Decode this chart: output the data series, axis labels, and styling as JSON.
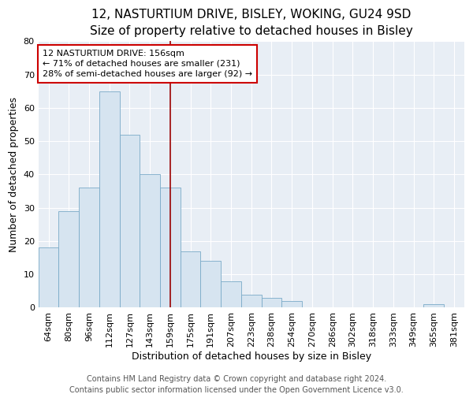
{
  "title": "12, NASTURTIUM DRIVE, BISLEY, WOKING, GU24 9SD",
  "subtitle": "Size of property relative to detached houses in Bisley",
  "xlabel": "Distribution of detached houses by size in Bisley",
  "ylabel": "Number of detached properties",
  "bar_color": "#d6e4f0",
  "bar_edge_color": "#7aaac8",
  "categories": [
    "64sqm",
    "80sqm",
    "96sqm",
    "112sqm",
    "127sqm",
    "143sqm",
    "159sqm",
    "175sqm",
    "191sqm",
    "207sqm",
    "223sqm",
    "238sqm",
    "254sqm",
    "270sqm",
    "286sqm",
    "302sqm",
    "318sqm",
    "333sqm",
    "349sqm",
    "365sqm",
    "381sqm"
  ],
  "values": [
    18,
    29,
    36,
    65,
    52,
    40,
    36,
    17,
    14,
    8,
    4,
    3,
    2,
    0,
    0,
    0,
    0,
    0,
    0,
    1,
    0
  ],
  "vline_x": 6.0,
  "vline_color": "#990000",
  "annotation_line1": "12 NASTURTIUM DRIVE: 156sqm",
  "annotation_line2": "← 71% of detached houses are smaller (231)",
  "annotation_line3": "28% of semi-detached houses are larger (92) →",
  "annotation_box_color": "#ffffff",
  "annotation_box_edge": "#cc0000",
  "ylim": [
    0,
    80
  ],
  "yticks": [
    0,
    10,
    20,
    30,
    40,
    50,
    60,
    70,
    80
  ],
  "footer_line1": "Contains HM Land Registry data © Crown copyright and database right 2024.",
  "footer_line2": "Contains public sector information licensed under the Open Government Licence v3.0.",
  "plot_bg_color": "#e8eef5",
  "fig_bg_color": "#ffffff",
  "grid_color": "#ffffff",
  "title_fontsize": 11,
  "xlabel_fontsize": 9,
  "ylabel_fontsize": 9,
  "tick_fontsize": 8,
  "annotation_fontsize": 8,
  "footer_fontsize": 7
}
